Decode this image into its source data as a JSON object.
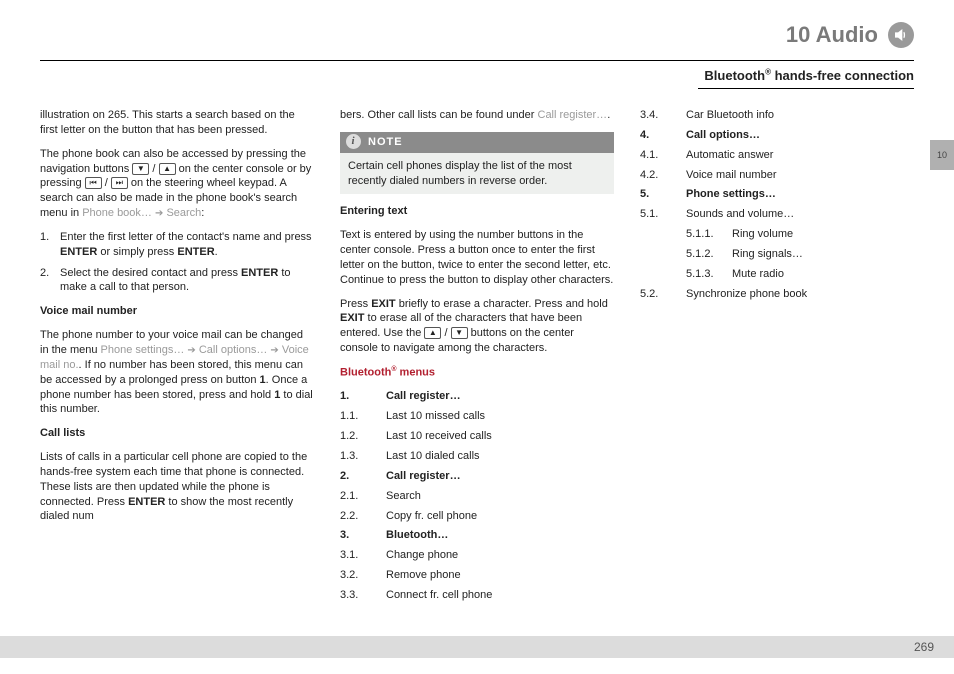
{
  "chapter": {
    "number": "10",
    "title": "Audio"
  },
  "section_title_pre": "Bluetooth",
  "section_title_post": " hands-free connection",
  "side_tab": "10",
  "page_number": "269",
  "col1": {
    "p1": "illustration on 265. This starts a search based on the first letter on the button that has been pressed.",
    "p2_a": "The phone book can also be accessed by pressing the navigation buttons ",
    "p2_b": " on the center console or by pressing ",
    "p2_c": " on the steering wheel keypad. A search can also be made in the phone book's search menu in ",
    "p2_menu1": "Phone book…",
    "p2_menu2": "Search",
    "step1_a": "Enter the first letter of the contact's name and press ",
    "step1_b": " or simply press ",
    "step2_a": "Select the desired contact and press ",
    "step2_b": " to make a call to that person.",
    "enter": "ENTER",
    "h_voicemail": "Voice mail number",
    "vm_a": "The phone number to your voice mail can be changed in the menu ",
    "vm_m1": "Phone settings…",
    "vm_m2": "Call options…",
    "vm_m3": "Voice mail no.",
    "vm_b": ". If no number has been stored, this menu can be accessed by a prolonged press on button ",
    "vm_c": ". Once a phone number has been stored, press and hold ",
    "vm_d": " to dial this number.",
    "one": "1",
    "h_calllists": "Call lists",
    "cl_a": "Lists of calls in a particular cell phone are copied to the hands-free system each time that phone is connected. These lists are then updated while the phone is connected. Press ",
    "cl_b": " to show the most recently dialed num"
  },
  "col2": {
    "top_a": "bers. Other call lists can be found under ",
    "top_m": "Call register…",
    "note_label": "NOTE",
    "note_body": "Certain cell phones display the list of the most recently dialed numbers in reverse order.",
    "h_enter": "Entering text",
    "et1": "Text is entered by using the number buttons in the center console. Press a button once to enter the first letter on the button, twice to enter the second letter, etc. Continue to press the button to display other characters.",
    "et2_a": "Press ",
    "et2_b": " briefly to erase a character. Press and hold ",
    "et2_c": " to erase all of the characters that have been entered. Use the ",
    "et2_d": " buttons on the center console to navigate among the characters.",
    "exit": "EXIT",
    "h_btmenu": "Bluetooth",
    "h_btmenu_post": " menus"
  },
  "menus": [
    {
      "n": "1.",
      "label": "Call register…",
      "sub": [
        {
          "n": "1.1.",
          "label": "Last 10 missed calls"
        },
        {
          "n": "1.2.",
          "label": "Last 10 received calls"
        },
        {
          "n": "1.3.",
          "label": "Last 10 dialed calls"
        }
      ]
    },
    {
      "n": "2.",
      "label": "Call register…",
      "sub": [
        {
          "n": "2.1.",
          "label": "Search"
        },
        {
          "n": "2.2.",
          "label": "Copy fr. cell phone"
        }
      ]
    },
    {
      "n": "3.",
      "label": "Bluetooth…",
      "sub": [
        {
          "n": "3.1.",
          "label": "Change phone"
        },
        {
          "n": "3.2.",
          "label": "Remove phone"
        },
        {
          "n": "3.3.",
          "label": "Connect fr. cell phone"
        },
        {
          "n": "3.4.",
          "label": "Car Bluetooth info"
        }
      ]
    },
    {
      "n": "4.",
      "label": "Call options…",
      "sub": [
        {
          "n": "4.1.",
          "label": "Automatic answer"
        },
        {
          "n": "4.2.",
          "label": "Voice mail number"
        }
      ]
    },
    {
      "n": "5.",
      "label": "Phone settings…",
      "sub": [
        {
          "n": "5.1.",
          "label": "Sounds and volume…",
          "subsub": [
            {
              "n": "5.1.1.",
              "label": "Ring volume"
            },
            {
              "n": "5.1.2.",
              "label": "Ring signals…"
            },
            {
              "n": "5.1.3.",
              "label": "Mute radio"
            }
          ]
        },
        {
          "n": "5.2.",
          "label": "Synchronize phone book"
        }
      ]
    }
  ]
}
